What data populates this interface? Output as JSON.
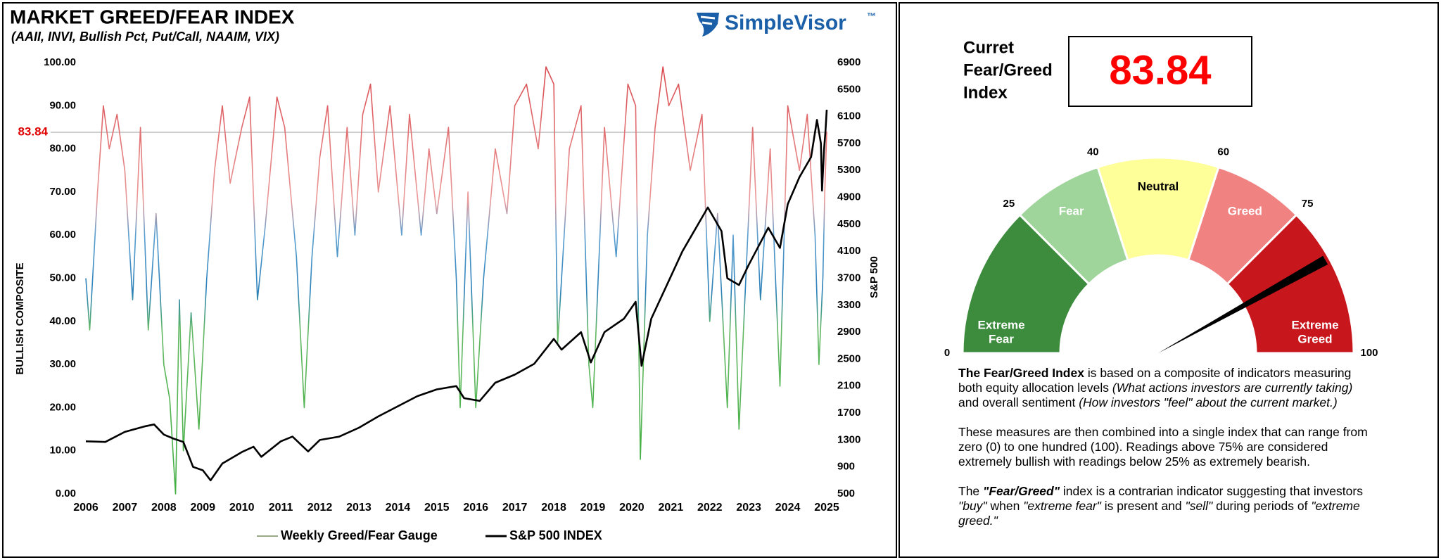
{
  "chart_data": [
    {
      "type": "line",
      "title": "MARKET GREED/FEAR INDEX",
      "subtitle": "(AAII, INVI, Bullish Pct, Put/Call, NAAIM, VIX)",
      "brand": "SimpleVisor",
      "brand_mark": "™",
      "ylabel": "BULLISH COMPOSITE",
      "y2label": "S&P 500",
      "xlim": [
        2006,
        2025
      ],
      "xticks": [
        2006,
        2007,
        2008,
        2009,
        2010,
        2011,
        2012,
        2013,
        2014,
        2015,
        2016,
        2017,
        2018,
        2019,
        2020,
        2021,
        2022,
        2023,
        2024,
        2025
      ],
      "ylim": [
        0,
        100
      ],
      "yticks": [
        {
          "value": 0,
          "label": "0.00"
        },
        {
          "value": 10,
          "label": "10.00"
        },
        {
          "value": 20,
          "label": "20.00"
        },
        {
          "value": 30,
          "label": "30.00"
        },
        {
          "value": 40,
          "label": "40.00"
        },
        {
          "value": 50,
          "label": "50.00"
        },
        {
          "value": 60,
          "label": "60.00"
        },
        {
          "value": 70,
          "label": "70.00"
        },
        {
          "value": 80,
          "label": "80.00"
        },
        {
          "value": 90,
          "label": "90.00"
        },
        {
          "value": 100,
          "label": "100.00"
        }
      ],
      "y2lim": [
        500,
        6900
      ],
      "y2ticks": [
        500,
        900,
        1300,
        1700,
        2100,
        2500,
        2900,
        3300,
        3700,
        4100,
        4500,
        4900,
        5300,
        5700,
        6100,
        6500,
        6900
      ],
      "reference_line": {
        "value": 83.84,
        "color": "#e00000"
      },
      "grid": false,
      "legend": "bottom",
      "series": [
        {
          "name": "Weekly Greed/Fear Gauge",
          "color": "#9aaa88",
          "color_stops": [
            {
              "value": 0,
              "color": "#3fae3f"
            },
            {
              "value": 38,
              "color": "#62b862"
            },
            {
              "value": 47,
              "color": "#2a7fb8"
            },
            {
              "value": 60,
              "color": "#5a9fd0"
            },
            {
              "value": 68,
              "color": "#eb9a9a"
            },
            {
              "value": 100,
              "color": "#d8464b"
            }
          ],
          "x": [
            2006.0,
            2006.1,
            2006.3,
            2006.45,
            2006.6,
            2006.8,
            2007.0,
            2007.2,
            2007.4,
            2007.6,
            2007.8,
            2008.0,
            2008.15,
            2008.3,
            2008.4,
            2008.5,
            2008.7,
            2008.9,
            2009.1,
            2009.3,
            2009.5,
            2009.7,
            2010.0,
            2010.2,
            2010.4,
            2010.6,
            2010.9,
            2011.1,
            2011.4,
            2011.6,
            2011.8,
            2012.0,
            2012.2,
            2012.45,
            2012.7,
            2012.9,
            2013.1,
            2013.3,
            2013.5,
            2013.8,
            2014.1,
            2014.3,
            2014.6,
            2014.8,
            2015.0,
            2015.3,
            2015.5,
            2015.6,
            2015.8,
            2016.0,
            2016.2,
            2016.5,
            2016.8,
            2017.0,
            2017.3,
            2017.6,
            2017.8,
            2018.0,
            2018.1,
            2018.4,
            2018.7,
            2018.9,
            2019.0,
            2019.3,
            2019.6,
            2019.9,
            2020.1,
            2020.22,
            2020.4,
            2020.6,
            2020.8,
            2020.95,
            2021.2,
            2021.5,
            2021.8,
            2022.0,
            2022.2,
            2022.45,
            2022.6,
            2022.75,
            2022.95,
            2023.1,
            2023.3,
            2023.55,
            2023.8,
            2024.0,
            2024.3,
            2024.5,
            2024.7,
            2024.8,
            2024.9,
            2024.95,
            2025.0
          ],
          "values": [
            50,
            38,
            70,
            90,
            80,
            88,
            75,
            45,
            85,
            38,
            65,
            30,
            22,
            0,
            45,
            10,
            42,
            15,
            50,
            75,
            90,
            72,
            85,
            92,
            45,
            62,
            92,
            85,
            55,
            20,
            55,
            78,
            90,
            55,
            85,
            60,
            88,
            95,
            70,
            90,
            60,
            88,
            60,
            80,
            65,
            85,
            50,
            20,
            70,
            20,
            50,
            80,
            65,
            90,
            95,
            80,
            99,
            95,
            35,
            80,
            90,
            30,
            20,
            85,
            55,
            95,
            90,
            8,
            60,
            85,
            99,
            90,
            95,
            75,
            88,
            40,
            65,
            20,
            60,
            15,
            55,
            85,
            45,
            80,
            25,
            90,
            75,
            88,
            60,
            30,
            50,
            70,
            84
          ]
        },
        {
          "name": "S&P 500 INDEX",
          "color": "#000000",
          "axis": "y2",
          "x": [
            2006.0,
            2006.5,
            2007.0,
            2007.5,
            2007.75,
            2008.0,
            2008.25,
            2008.5,
            2008.75,
            2009.0,
            2009.2,
            2009.5,
            2010.0,
            2010.3,
            2010.5,
            2011.0,
            2011.3,
            2011.7,
            2012.0,
            2012.5,
            2013.0,
            2013.5,
            2014.0,
            2014.5,
            2015.0,
            2015.5,
            2015.7,
            2016.1,
            2016.5,
            2017.0,
            2017.5,
            2018.0,
            2018.2,
            2018.7,
            2018.95,
            2019.3,
            2019.8,
            2020.1,
            2020.25,
            2020.5,
            2020.9,
            2021.3,
            2021.95,
            2022.3,
            2022.45,
            2022.75,
            2023.0,
            2023.5,
            2023.8,
            2024.0,
            2024.3,
            2024.6,
            2024.75,
            2024.85,
            2024.88,
            2024.93,
            2024.97,
            2025.0
          ],
          "values": [
            1280,
            1270,
            1420,
            1500,
            1530,
            1380,
            1320,
            1270,
            900,
            850,
            700,
            950,
            1120,
            1200,
            1050,
            1280,
            1350,
            1130,
            1300,
            1350,
            1480,
            1650,
            1800,
            1950,
            2050,
            2100,
            1920,
            1880,
            2150,
            2270,
            2430,
            2800,
            2640,
            2900,
            2450,
            2900,
            3100,
            3350,
            2400,
            3100,
            3600,
            4100,
            4750,
            4400,
            3700,
            3600,
            3900,
            4450,
            4150,
            4800,
            5200,
            5500,
            6050,
            5700,
            5000,
            5600,
            5900,
            6200
          ]
        }
      ]
    },
    {
      "type": "gauge",
      "title": [
        "Curret",
        "Fear/Greed",
        "Index"
      ],
      "value": 83.84,
      "value_color": "#ff0000",
      "lim": [
        0,
        100
      ],
      "ticks": [
        0,
        25,
        40,
        60,
        75,
        100
      ],
      "bands": [
        {
          "label": [
            "Extreme",
            "Fear"
          ],
          "color": "#3d8b3d",
          "text_color": "#ffffff"
        },
        {
          "label": [
            "Fear"
          ],
          "color": "#9fd49a",
          "text_color": "#ffffff"
        },
        {
          "label": [
            "Neutral"
          ],
          "color": "#ffff99",
          "text_color": "#000000"
        },
        {
          "label": [
            "Greed"
          ],
          "color": "#f08282",
          "text_color": "#ffffff"
        },
        {
          "label": [
            "Extreme",
            "Greed"
          ],
          "color": "#c8161d",
          "text_color": "#ffffff"
        }
      ]
    }
  ],
  "description": {
    "paragraphs": [
      [
        {
          "text": "The Fear/Greed Index",
          "style": "bold"
        },
        {
          "text": " is based on a composite of indicators measuring both equity allocation levels ",
          "style": "normal"
        },
        {
          "text": "(What actions investors are currently taking)",
          "style": "italic"
        },
        {
          "text": " and overall sentiment ",
          "style": "normal"
        },
        {
          "text": "(How investors \"feel\" about the current market.)",
          "style": "italic"
        }
      ],
      [
        {
          "text": "These measures are then combined into a single index that can range from zero (0) to one hundred (100). Readings above 75% are considered extremely bullish with readings below 25% as extremely bearish.",
          "style": "normal"
        }
      ],
      [
        {
          "text": "The ",
          "style": "normal"
        },
        {
          "text": "\"Fear/Greed\"",
          "style": "bold-italic"
        },
        {
          "text": " index is a contrarian indicator suggesting that investors ",
          "style": "normal"
        },
        {
          "text": "\"buy\"",
          "style": "italic"
        },
        {
          "text": " when ",
          "style": "normal"
        },
        {
          "text": "\"extreme fear\"",
          "style": "italic"
        },
        {
          "text": " is present and ",
          "style": "normal"
        },
        {
          "text": "\"sell\"",
          "style": "italic"
        },
        {
          "text": " during periods of ",
          "style": "normal"
        },
        {
          "text": "\"extreme greed.\"",
          "style": "italic"
        }
      ]
    ]
  }
}
